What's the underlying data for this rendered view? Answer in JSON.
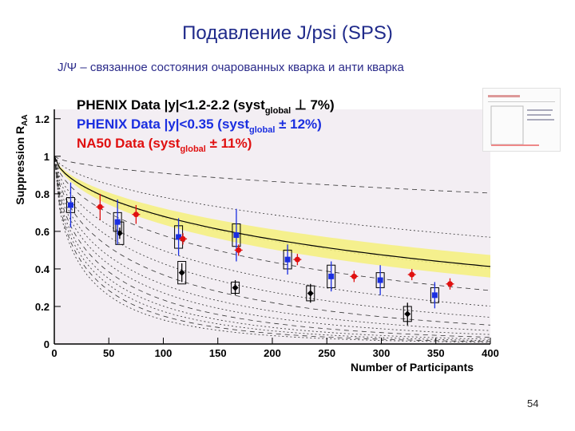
{
  "slide": {
    "title": "Подавление J/psi (SPS)",
    "subtitle": "J/Ψ – связанное состояния очарованных кварка и анти кварка",
    "page_number": "54"
  },
  "colors": {
    "black": "#000000",
    "blue": "#1a2ee0",
    "red": "#e01010",
    "band": "#f4f07a",
    "bg": "#f3eef3"
  },
  "chart_data": {
    "type": "scatter",
    "xlabel": "Number of Participants",
    "ylabel": "Suppression R",
    "ylabel_sub": "AA",
    "xlim": [
      0,
      400
    ],
    "ylim": [
      0,
      1.25
    ],
    "x_ticks": [
      0,
      50,
      100,
      150,
      200,
      250,
      300,
      350,
      400
    ],
    "x_tick_labels": [
      "0",
      "50",
      "100",
      "150",
      "200",
      "250",
      "300",
      "350",
      "400"
    ],
    "y_ticks": [
      0,
      0.2,
      0.4,
      0.6,
      0.8,
      1,
      1.2
    ],
    "y_tick_labels": [
      "0",
      "0.2",
      "0.4",
      "0.6",
      "0.8",
      "1",
      "1.2"
    ],
    "legend": [
      {
        "text": "PHENIX Data |y|<1.2-2.2 (syst",
        "sub": "global",
        "sym": "⊥ 7%)",
        "color": "#000000"
      },
      {
        "text": "PHENIX Data |y|<0.35 (syst",
        "sub": "global",
        "sym": "± 12%)",
        "color": "#1a2ee0"
      },
      {
        "text": "NA50 Data       (syst",
        "sub": "global",
        "sym": "± 11%)",
        "color": "#e01010"
      }
    ],
    "series": [
      {
        "name": "PHENIX |y|<1.2-2.2",
        "marker": "diamond",
        "color": "#000000",
        "x": [
          60,
          117,
          166,
          235,
          324
        ],
        "y": [
          0.59,
          0.38,
          0.3,
          0.27,
          0.16
        ],
        "err": [
          0.03,
          0.05,
          0.04,
          0.05,
          0.06
        ],
        "box": [
          0.06,
          0.06,
          0.03,
          0.04,
          0.04
        ]
      },
      {
        "name": "PHENIX |y|<0.35",
        "marker": "square",
        "color": "#1a2ee0",
        "x": [
          15,
          58,
          114,
          167,
          214,
          254,
          299,
          349
        ],
        "y": [
          0.74,
          0.65,
          0.57,
          0.58,
          0.45,
          0.36,
          0.34,
          0.26
        ],
        "err": [
          0.12,
          0.12,
          0.1,
          0.14,
          0.08,
          0.08,
          0.08,
          0.07
        ],
        "box": [
          0.04,
          0.05,
          0.06,
          0.06,
          0.05,
          0.06,
          0.04,
          0.04
        ]
      },
      {
        "name": "NA50",
        "marker": "circle",
        "color": "#e01010",
        "x": [
          42,
          75,
          118,
          169,
          223,
          275,
          328,
          363
        ],
        "y": [
          0.73,
          0.69,
          0.56,
          0.5,
          0.45,
          0.36,
          0.37,
          0.32
        ],
        "err": [
          0.07,
          0.05,
          0.03,
          0.03,
          0.03,
          0.03,
          0.03,
          0.03
        ]
      }
    ]
  }
}
